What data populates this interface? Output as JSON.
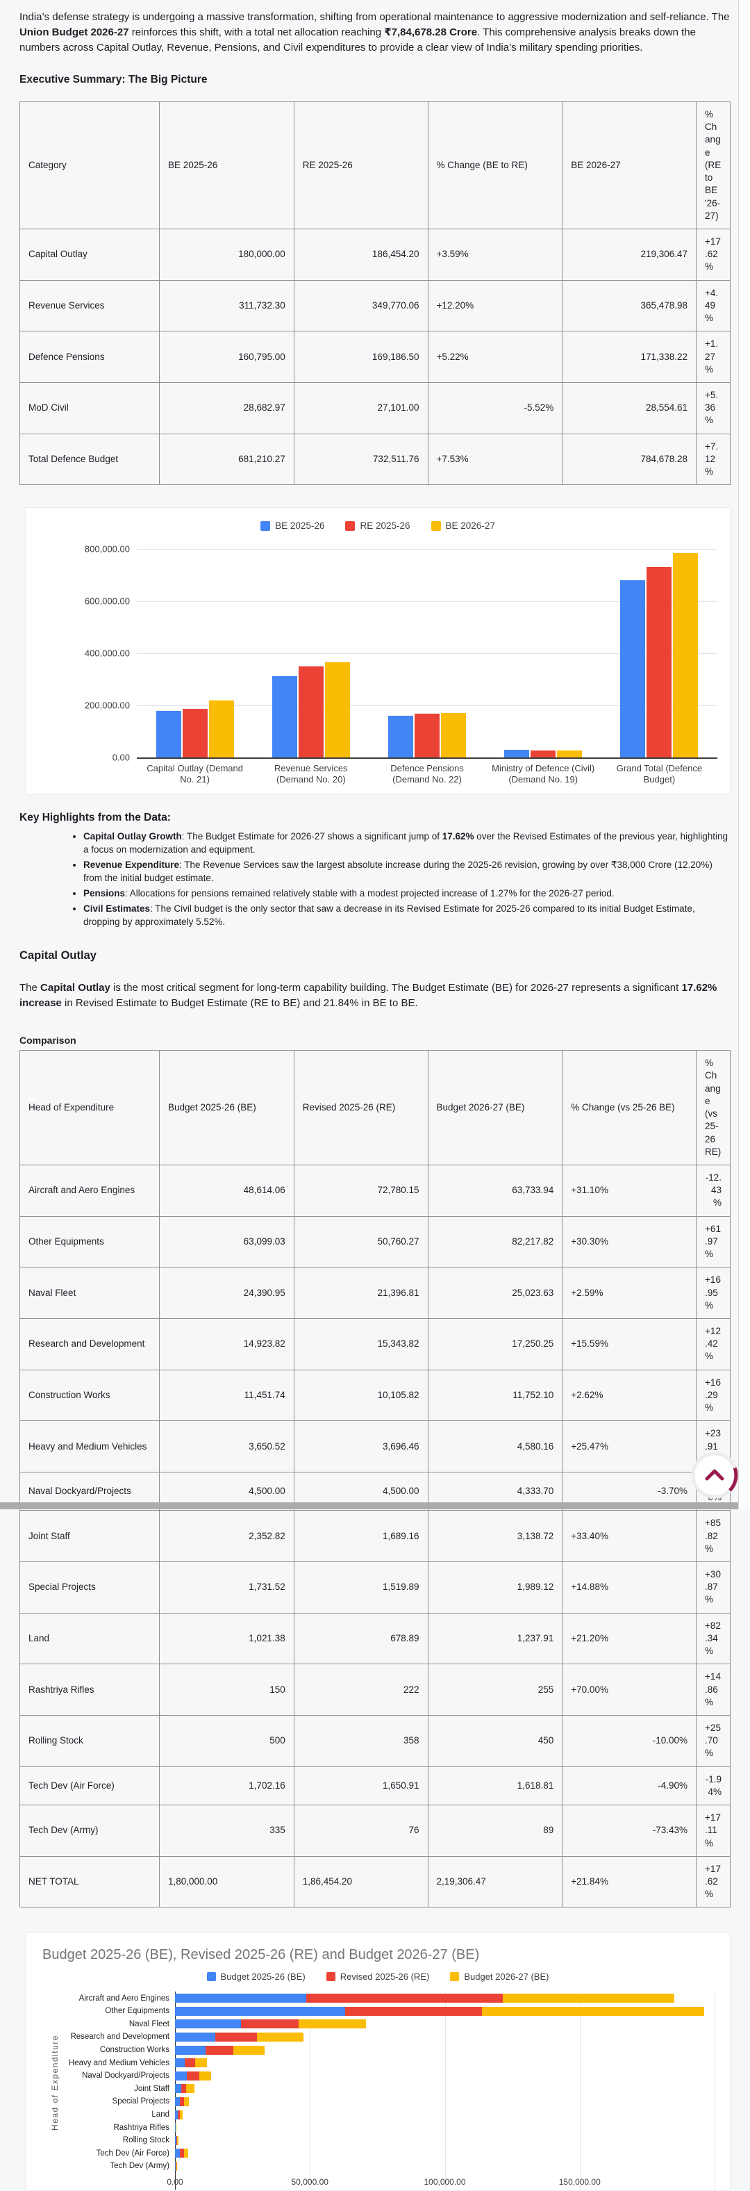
{
  "colors": {
    "blue": "#4285F4",
    "red": "#EA4335",
    "yellow": "#FBBC04",
    "crimson": "#9A1B4E",
    "grid": "#e2e4e6",
    "card": "#ffffff",
    "page_bg": "#f6f7f8"
  },
  "intro": {
    "segments": [
      {
        "text": "India’s defense strategy is undergoing a massive transformation, shifting from operational maintenance to aggressive modernization and self-reliance. The ",
        "bold": false
      },
      {
        "text": "Union Budget 2026-27",
        "bold": true
      },
      {
        "text": " reinforces this shift, with a total net allocation reaching ",
        "bold": false
      },
      {
        "text": "₹7,84,678.28 Crore",
        "bold": true
      },
      {
        "text": ". This comprehensive analysis breaks down the numbers across Capital Outlay, Revenue, Pensions, and Civil expenditures to provide a clear view of India’s military spending priorities.",
        "bold": false
      }
    ]
  },
  "exec_summary": {
    "heading": "Executive Summary: The Big Picture",
    "table": {
      "headers": [
        "Category",
        "BE 2025-26",
        "RE 2025-26",
        "% Change (BE to RE)",
        "BE 2026-27",
        "% Change (RE to BE '26-27)"
      ],
      "rows": [
        {
          "cells": [
            "Capital Outlay",
            "180,000.00",
            "186,454.20",
            "+3.59%",
            "219,306.47",
            "+17.62%"
          ],
          "total": false
        },
        {
          "cells": [
            "Revenue Services",
            "311,732.30",
            "349,770.06",
            "+12.20%",
            "365,478.98",
            "+4.49%"
          ],
          "total": false
        },
        {
          "cells": [
            "Defence Pensions",
            "160,795.00",
            "169,186.50",
            "+5.22%",
            "171,338.22",
            "+1.27%"
          ],
          "total": false
        },
        {
          "cells": [
            "MoD Civil",
            "28,682.97",
            "27,101.00",
            "-5.52%",
            "28,554.61",
            "+5.36%"
          ],
          "total": false
        },
        {
          "cells": [
            "Total Defence Budget",
            "681,210.27",
            "732,511.76",
            "+7.53%",
            "784,678.28",
            "+7.12%"
          ],
          "total": false
        }
      ]
    }
  },
  "key_highlights": {
    "heading": "Key Highlights from the Data:",
    "bullets": [
      [
        {
          "text": "Capital Outlay Growth",
          "bold": true
        },
        {
          "text": ": The Budget Estimate for 2026-27 shows a significant jump of ",
          "bold": false
        },
        {
          "text": "17.62%",
          "bold": true
        },
        {
          "text": " over the Revised Estimates of the previous year, highlighting a focus on modernization and equipment.",
          "bold": false
        }
      ],
      [
        {
          "text": "Revenue Expenditure",
          "bold": true
        },
        {
          "text": ": The Revenue Services saw the largest absolute increase during the 2025-26 revision, growing by over ₹38,000 Crore (12.20%) from the initial budget estimate.",
          "bold": false
        }
      ],
      [
        {
          "text": "Pensions",
          "bold": true
        },
        {
          "text": ": Allocations for pensions remained relatively stable with a modest projected increase of 1.27% for the 2026-27 period.",
          "bold": false
        }
      ],
      [
        {
          "text": "Civil Estimates",
          "bold": true
        },
        {
          "text": ": The Civil budget is the only sector that saw a decrease in its Revised Estimate for 2025-26 compared to its initial Budget Estimate, dropping by approximately 5.52%.",
          "bold": false
        }
      ]
    ]
  },
  "capital_outlay": {
    "heading": "Capital Outlay",
    "segments": [
      {
        "text": "The ",
        "bold": false
      },
      {
        "text": "Capital Outlay",
        "bold": true
      },
      {
        "text": " is the most critical segment for long-term capability building. The Budget Estimate (BE) for 2026-27 represents a significant ",
        "bold": false
      },
      {
        "text": "17.62% increase",
        "bold": true
      },
      {
        "text": " in Revised Estimate to Budget Estimate (RE to BE) and 21.84% in BE to BE.",
        "bold": false
      }
    ],
    "table_label": "Comparison",
    "table": {
      "headers": [
        "Head of Expenditure",
        "Budget 2025-26 (BE)",
        "Revised 2025-26 (RE)",
        "Budget 2026-27 (BE)",
        "% Change (vs 25-26 BE)",
        "% Change (vs 25-26 RE)"
      ],
      "rows": [
        {
          "cells": [
            "Aircraft and Aero Engines",
            "48,614.06",
            "72,780.15",
            "63,733.94",
            "+31.10%",
            "-12.43%"
          ],
          "total": false
        },
        {
          "cells": [
            "Other Equipments",
            "63,099.03",
            "50,760.27",
            "82,217.82",
            "+30.30%",
            "+61.97%"
          ],
          "total": false
        },
        {
          "cells": [
            "Naval Fleet",
            "24,390.95",
            "21,396.81",
            "25,023.63",
            "+2.59%",
            "+16.95%"
          ],
          "total": false
        },
        {
          "cells": [
            "Research and Development",
            "14,923.82",
            "15,343.82",
            "17,250.25",
            "+15.59%",
            "+12.42%"
          ],
          "total": false
        },
        {
          "cells": [
            "Construction Works",
            "11,451.74",
            "10,105.82",
            "11,752.10",
            "+2.62%",
            "+16.29%"
          ],
          "total": false
        },
        {
          "cells": [
            "Heavy and Medium Vehicles",
            "3,650.52",
            "3,696.46",
            "4,580.16",
            "+25.47%",
            "+23.91%"
          ],
          "total": false
        },
        {
          "cells": [
            "Naval Dockyard/Projects",
            "4,500.00",
            "4,500.00",
            "4,333.70",
            "-3.70%",
            "-3.70%"
          ],
          "total": false
        },
        {
          "cells": [
            "Joint Staff",
            "2,352.82",
            "1,689.16",
            "3,138.72",
            "+33.40%",
            "+85.82%"
          ],
          "total": false
        },
        {
          "cells": [
            "Special Projects",
            "1,731.52",
            "1,519.89",
            "1,989.12",
            "+14.88%",
            "+30.87%"
          ],
          "total": false
        },
        {
          "cells": [
            "Land",
            "1,021.38",
            "678.89",
            "1,237.91",
            "+21.20%",
            "+82.34%"
          ],
          "total": false
        },
        {
          "cells": [
            "Rashtriya Rifles",
            "150",
            "222",
            "255",
            "+70.00%",
            "+14.86%"
          ],
          "total": false
        },
        {
          "cells": [
            "Rolling Stock",
            "500",
            "358",
            "450",
            "-10.00%",
            "+25.70%"
          ],
          "total": false
        },
        {
          "cells": [
            "Tech Dev (Air Force)",
            "1,702.16",
            "1,650.91",
            "1,618.81",
            "-4.90%",
            "-1.94%"
          ],
          "total": false
        },
        {
          "cells": [
            "Tech Dev (Army)",
            "335",
            "76",
            "89",
            "-73.43%",
            "+17.11%"
          ],
          "total": false
        },
        {
          "cells": [
            "NET TOTAL",
            "1,80,000.00",
            "1,86,454.20",
            "2,19,306.47",
            "+21.84%",
            "+17.62%"
          ],
          "total": true
        }
      ]
    }
  },
  "chart_data": [
    {
      "type": "bar",
      "orientation": "vertical-grouped",
      "title": "",
      "legend_position": "top",
      "grid": "horizontal",
      "categories": [
        "Capital Outlay (Demand No. 21)",
        "Revenue Services (Demand No. 20)",
        "Defence Pensions (Demand No. 22)",
        "Ministry of Defence (Civil) (Demand No. 19)",
        "Grand Total (Defence Budget)"
      ],
      "series": [
        {
          "name": "BE 2025-26",
          "color": "#4285F4",
          "values": [
            180000.0,
            311732.3,
            160795.0,
            28682.97,
            681210.27
          ]
        },
        {
          "name": "RE 2025-26",
          "color": "#EA4335",
          "values": [
            186454.2,
            349770.06,
            169186.5,
            27101.0,
            732511.76
          ]
        },
        {
          "name": "BE 2026-27",
          "color": "#FBBC04",
          "values": [
            219306.47,
            365478.98,
            171338.22,
            28554.61,
            784678.28
          ]
        }
      ],
      "ylim": [
        0,
        800000
      ],
      "yticks": [
        {
          "v": 0,
          "label": "0.00"
        },
        {
          "v": 200000,
          "label": "200,000.00"
        },
        {
          "v": 400000,
          "label": "400,000.00"
        },
        {
          "v": 600000,
          "label": "600,000.00"
        },
        {
          "v": 800000,
          "label": "800,000.00"
        }
      ]
    },
    {
      "type": "bar",
      "orientation": "horizontal-stacked",
      "title": "Budget 2025-26 (BE), Revised 2025-26 (RE) and Budget 2026-27 (BE)",
      "ylabel": "Head of Expenditure",
      "legend_position": "top",
      "grid": "vertical",
      "categories": [
        "Aircraft and Aero Engines",
        "Other Equipments",
        "Naval Fleet",
        "Research and Development",
        "Construction Works",
        "Heavy and Medium Vehicles",
        "Naval Dockyard/Projects",
        "Joint Staff",
        "Special Projects",
        "Land",
        "Rashtriya Rifles",
        "Rolling Stock",
        "Tech Dev (Air Force)",
        "Tech Dev (Army)"
      ],
      "series": [
        {
          "name": "Budget 2025-26 (BE)",
          "color": "#4285F4",
          "values": [
            48614.06,
            63099.03,
            24390.95,
            14923.82,
            11451.74,
            3650.52,
            4500.0,
            2352.82,
            1731.52,
            1021.38,
            150,
            500,
            1702.16,
            335
          ]
        },
        {
          "name": "Revised 2025-26 (RE)",
          "color": "#EA4335",
          "values": [
            72780.15,
            50760.27,
            21396.81,
            15343.82,
            10105.82,
            3696.46,
            4500.0,
            1689.16,
            1519.89,
            678.89,
            222,
            358,
            1650.91,
            76
          ]
        },
        {
          "name": "Budget 2026-27 (BE)",
          "color": "#FBBC04",
          "values": [
            63733.94,
            82217.82,
            25023.63,
            17250.25,
            11752.1,
            4580.16,
            4333.7,
            3138.72,
            1989.12,
            1237.91,
            255,
            450,
            1618.81,
            89
          ]
        }
      ],
      "xlim": [
        0,
        200000
      ],
      "xticks": [
        {
          "v": 0,
          "label": "0.00"
        },
        {
          "v": 50000,
          "label": "50,000.00"
        },
        {
          "v": 100000,
          "label": "100,000.00"
        },
        {
          "v": 150000,
          "label": "150,000.00"
        },
        {
          "v": 200000,
          "label": ""
        }
      ]
    }
  ],
  "scroll_top_button": {
    "icon": "chevron-up-icon"
  }
}
